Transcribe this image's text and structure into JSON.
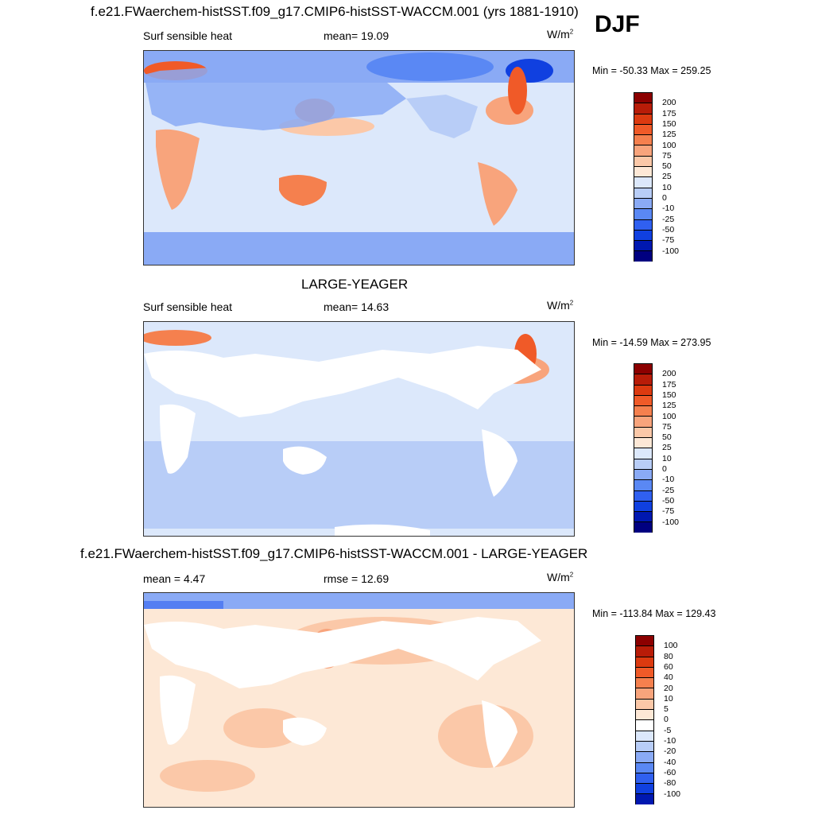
{
  "season": "DJF",
  "colors": {
    "ramp12": [
      "#000080",
      "#0018b0",
      "#1040e0",
      "#3060f0",
      "#5a88f4",
      "#8aaaf5",
      "#b8cdf7",
      "#dde9fb",
      "#fde8d6",
      "#fbc4a5",
      "#f89c72",
      "#f47445",
      "#ed4a1c",
      "#c8260e",
      "#8c0000"
    ],
    "land": "#ffffff",
    "coast": "#1a1a1a"
  },
  "panels": [
    {
      "title": "f.e21.FWaerchem-histSST.f09_g17.CMIP6-histSST-WACCM.001 (yrs 1881-1910)",
      "left_label": "Surf sensible heat",
      "center_label": "mean=  19.09",
      "units": "W/m",
      "units_sup": "2",
      "minmax": "Min = -50.33 Max = 259.25",
      "levels": [
        "200",
        "175",
        "150",
        "125",
        "100",
        "75",
        "50",
        "25",
        "10",
        "0",
        "-10",
        "-25",
        "-50",
        "-75",
        "-100"
      ],
      "palette": [
        "#8c0000",
        "#b81c08",
        "#dc3a10",
        "#f05a28",
        "#f5804e",
        "#f8a47c",
        "#fbc8a8",
        "#fde8d6",
        "#dce8fb",
        "#b8cdf7",
        "#8aaaf5",
        "#5a88f4",
        "#3060f0",
        "#1040e0",
        "#0018b0",
        "#000080"
      ]
    },
    {
      "title": "LARGE-YEAGER",
      "left_label": "Surf sensible heat",
      "center_label": "mean=  14.63",
      "units": "W/m",
      "units_sup": "2",
      "minmax": "Min = -14.59 Max = 273.95",
      "levels": [
        "200",
        "175",
        "150",
        "125",
        "100",
        "75",
        "50",
        "25",
        "10",
        "0",
        "-10",
        "-25",
        "-50",
        "-75",
        "-100"
      ],
      "palette": [
        "#8c0000",
        "#b81c08",
        "#dc3a10",
        "#f05a28",
        "#f5804e",
        "#f8a47c",
        "#fbc8a8",
        "#fde8d6",
        "#dce8fb",
        "#b8cdf7",
        "#8aaaf5",
        "#5a88f4",
        "#3060f0",
        "#1040e0",
        "#0018b0",
        "#000080"
      ]
    },
    {
      "title": "f.e21.FWaerchem-histSST.f09_g17.CMIP6-histSST-WACCM.001 - LARGE-YEAGER",
      "left_label": "mean =   4.47",
      "center_label": "rmse =  12.69",
      "units": "W/m",
      "units_sup": "2",
      "minmax": "Min = -113.84 Max = 129.43",
      "levels": [
        "100",
        "80",
        "60",
        "40",
        "20",
        "10",
        "5",
        "0",
        "-5",
        "-10",
        "-20",
        "-40",
        "-60",
        "-80",
        "-100"
      ],
      "palette": [
        "#8c0000",
        "#b81c08",
        "#dc3a10",
        "#f05a28",
        "#f5804e",
        "#f8a47c",
        "#fbc8a8",
        "#fde8d6",
        "#ffffff",
        "#dce8fb",
        "#b8cdf7",
        "#8aaaf5",
        "#5a88f4",
        "#3060f0",
        "#1040e0",
        "#0018b0"
      ]
    }
  ]
}
